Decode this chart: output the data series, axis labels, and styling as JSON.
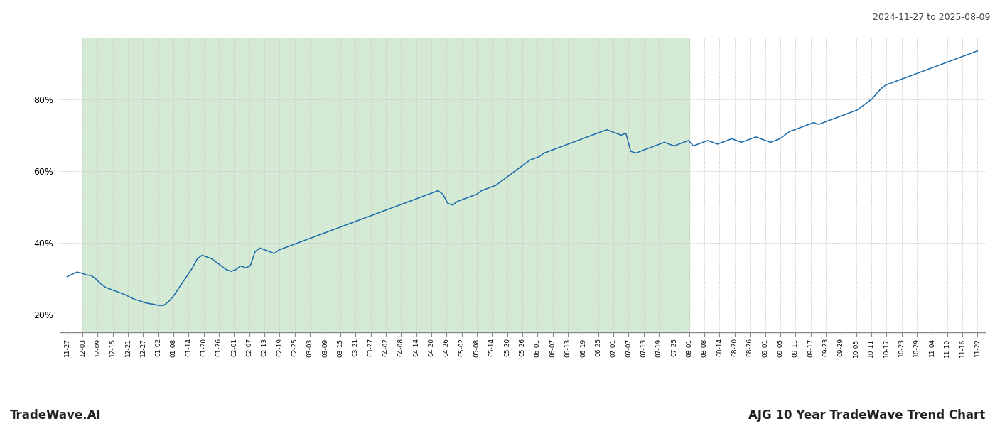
{
  "title_top_right": "2024-11-27 to 2025-08-09",
  "title_bottom_left": "TradeWave.AI",
  "title_bottom_right": "AJG 10 Year TradeWave Trend Chart",
  "y_ticks": [
    20,
    40,
    60,
    80
  ],
  "y_min": 15,
  "y_max": 97,
  "line_color": "#1a6aaa",
  "shade_color": "#d4ead4",
  "background_color": "#ffffff",
  "grid_color": "#cccccc",
  "x_labels": [
    "11-27",
    "12-03",
    "12-09",
    "12-15",
    "12-21",
    "12-27",
    "01-02",
    "01-08",
    "01-14",
    "01-20",
    "01-26",
    "02-01",
    "02-07",
    "02-13",
    "02-19",
    "02-25",
    "03-03",
    "03-09",
    "03-15",
    "03-21",
    "03-27",
    "04-02",
    "04-08",
    "04-14",
    "04-20",
    "04-26",
    "05-02",
    "05-08",
    "05-14",
    "05-20",
    "05-26",
    "06-01",
    "06-07",
    "06-13",
    "06-19",
    "06-25",
    "07-01",
    "07-07",
    "07-13",
    "07-19",
    "07-25",
    "08-01",
    "08-08",
    "08-14",
    "08-20",
    "08-26",
    "09-01",
    "09-05",
    "09-11",
    "09-17",
    "09-23",
    "09-29",
    "10-05",
    "10-11",
    "10-17",
    "10-23",
    "10-29",
    "11-04",
    "11-10",
    "11-16",
    "11-22"
  ],
  "shade_start_label": "12-03",
  "shade_end_label": "08-01",
  "values": [
    30.5,
    31.2,
    31.8,
    31.5,
    31.0,
    30.8,
    29.8,
    28.5,
    27.5,
    27.0,
    26.5,
    26.0,
    25.5,
    24.8,
    24.2,
    23.8,
    23.3,
    23.0,
    22.8,
    22.5,
    22.5,
    23.5,
    25.0,
    27.0,
    29.0,
    31.0,
    33.0,
    35.5,
    36.5,
    36.0,
    35.5,
    34.5,
    33.5,
    32.5,
    32.0,
    32.5,
    33.5,
    33.0,
    33.5,
    37.5,
    38.5,
    38.0,
    37.5,
    37.0,
    38.0,
    38.5,
    39.0,
    39.5,
    40.0,
    40.5,
    41.0,
    41.5,
    42.0,
    42.5,
    43.0,
    43.5,
    44.0,
    44.5,
    45.0,
    45.5,
    46.0,
    46.5,
    47.0,
    47.5,
    48.0,
    48.5,
    49.0,
    49.5,
    50.0,
    50.5,
    51.0,
    51.5,
    52.0,
    52.5,
    53.0,
    53.5,
    54.0,
    54.5,
    53.5,
    51.0,
    50.5,
    51.5,
    52.0,
    52.5,
    53.0,
    53.5,
    54.5,
    55.0,
    55.5,
    56.0,
    57.0,
    58.0,
    59.0,
    60.0,
    61.0,
    62.0,
    63.0,
    63.5,
    64.0,
    65.0,
    65.5,
    66.0,
    66.5,
    67.0,
    67.5,
    68.0,
    68.5,
    69.0,
    69.5,
    70.0,
    70.5,
    71.0,
    71.5,
    71.0,
    70.5,
    70.0,
    70.5,
    65.5,
    65.0,
    65.5,
    66.0,
    66.5,
    67.0,
    67.5,
    68.0,
    67.5,
    67.0,
    67.5,
    68.0,
    68.5,
    67.0,
    67.5,
    68.0,
    68.5,
    68.0,
    67.5,
    68.0,
    68.5,
    69.0,
    68.5,
    68.0,
    68.5,
    69.0,
    69.5,
    69.0,
    68.5,
    68.0,
    68.5,
    69.0,
    70.0,
    71.0,
    71.5,
    72.0,
    72.5,
    73.0,
    73.5,
    73.0,
    73.5,
    74.0,
    74.5,
    75.0,
    75.5,
    76.0,
    76.5,
    77.0,
    78.0,
    79.0,
    80.0,
    81.5,
    83.0,
    84.0,
    84.5,
    85.0,
    85.5,
    86.0,
    86.5,
    87.0,
    87.5,
    88.0,
    88.5,
    89.0,
    89.5,
    90.0,
    90.5,
    91.0,
    91.5,
    92.0,
    92.5,
    93.0,
    93.5
  ]
}
